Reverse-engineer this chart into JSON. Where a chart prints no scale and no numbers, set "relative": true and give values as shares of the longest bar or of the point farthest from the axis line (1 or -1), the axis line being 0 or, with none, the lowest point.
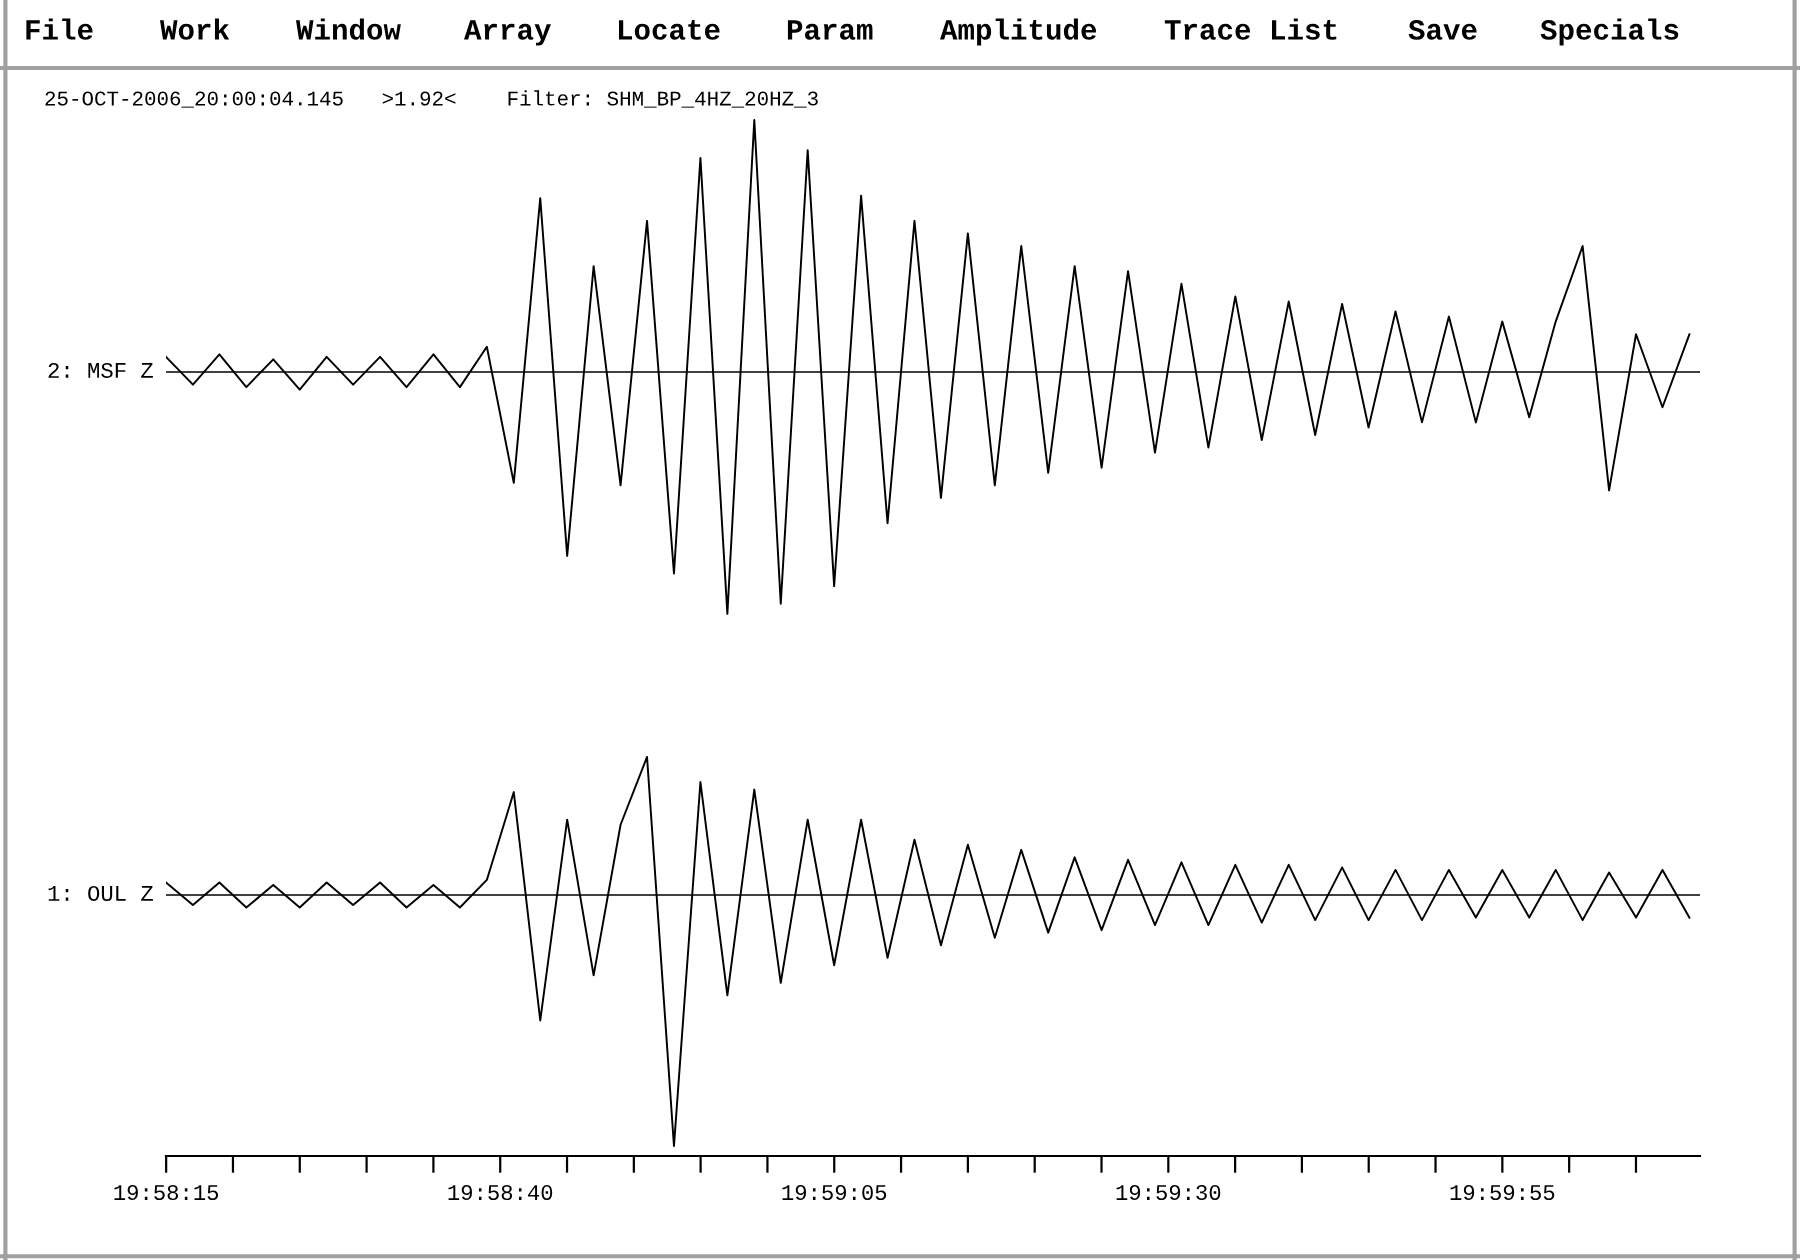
{
  "chart_data": [
    {
      "type": "line",
      "relative": true,
      "ylabel": "2: MSF Z",
      "annotations": [
        "File",
        "Work",
        "Window",
        "Array",
        "Locate",
        "Param",
        "Amplitude",
        "Trace List",
        "Save",
        "Specials",
        "25-OCT-2006_20:00:04.145   >1.92<    Filter: SHM_BP_4HZ_20HZ_3"
      ],
      "x": [
        19.97083,
        19.97139,
        19.97194,
        19.9725,
        19.97306,
        19.97361,
        19.97417,
        19.97472,
        19.97528,
        19.97583,
        19.97639,
        19.97694,
        19.9775,
        19.97806,
        19.97861,
        19.97917,
        19.97972,
        19.98028,
        19.98083,
        19.98139,
        19.98194,
        19.9825,
        19.98306,
        19.98361,
        19.98417,
        19.98472,
        19.98528,
        19.98583,
        19.98639,
        19.98694,
        19.9875,
        19.98806,
        19.98861,
        19.98917,
        19.98972,
        19.99028,
        19.99083,
        19.99139,
        19.99194,
        19.9925,
        19.99306,
        19.99361,
        19.99417,
        19.99472,
        19.99528,
        19.99583,
        19.99639,
        19.99694,
        19.9975,
        19.99806,
        19.99861,
        19.99917,
        19.99972,
        20.00028,
        20.00083,
        20.00139,
        20.00194,
        20.0025
      ],
      "series": [
        {
          "color": "#000000",
          "values": [
            0.06,
            -0.05,
            0.07,
            -0.06,
            0.05,
            -0.07,
            0.06,
            -0.05,
            0.06,
            -0.06,
            0.07,
            -0.06,
            0.1,
            -0.44,
            0.69,
            -0.73,
            0.42,
            -0.45,
            0.6,
            -0.8,
            0.85,
            -0.96,
            1.0,
            -0.92,
            0.88,
            -0.85,
            0.7,
            -0.6,
            0.6,
            -0.5,
            0.55,
            -0.45,
            0.5,
            -0.4,
            0.42,
            -0.38,
            0.4,
            -0.32,
            0.35,
            -0.3,
            0.3,
            -0.27,
            0.28,
            -0.25,
            0.27,
            -0.22,
            0.24,
            -0.2,
            0.22,
            -0.2,
            0.2,
            -0.18,
            0.2,
            0.5,
            -0.47,
            0.15,
            -0.14,
            0.15
          ]
        }
      ],
      "xlim": [
        19.97083,
        20.00272
      ]
    },
    {
      "type": "line",
      "relative": true,
      "ylabel": "1: OUL Z",
      "tick_labels": "x",
      "x": [
        19.97083,
        19.97139,
        19.97194,
        19.9725,
        19.97306,
        19.97361,
        19.97417,
        19.97472,
        19.97528,
        19.97583,
        19.97639,
        19.97694,
        19.9775,
        19.97806,
        19.97861,
        19.97917,
        19.97972,
        19.98028,
        19.98083,
        19.98139,
        19.98194,
        19.9825,
        19.98306,
        19.98361,
        19.98417,
        19.98472,
        19.98528,
        19.98583,
        19.98639,
        19.98694,
        19.9875,
        19.98806,
        19.98861,
        19.98917,
        19.98972,
        19.99028,
        19.99083,
        19.99139,
        19.99194,
        19.9925,
        19.99306,
        19.99361,
        19.99417,
        19.99472,
        19.99528,
        19.99583,
        19.99639,
        19.99694,
        19.9975,
        19.99806,
        19.99861,
        19.99917,
        19.99972,
        20.00028,
        20.00083,
        20.00139,
        20.00194,
        20.0025
      ],
      "series": [
        {
          "color": "#000000",
          "values": [
            0.05,
            -0.04,
            0.05,
            -0.05,
            0.04,
            -0.05,
            0.05,
            -0.04,
            0.05,
            -0.05,
            0.04,
            -0.05,
            0.06,
            0.41,
            -0.5,
            0.3,
            -0.32,
            0.28,
            0.55,
            -1.0,
            0.45,
            -0.4,
            0.42,
            -0.35,
            0.3,
            -0.28,
            0.3,
            -0.25,
            0.22,
            -0.2,
            0.2,
            -0.17,
            0.18,
            -0.15,
            0.15,
            -0.14,
            0.14,
            -0.12,
            0.13,
            -0.12,
            0.12,
            -0.11,
            0.12,
            -0.1,
            0.11,
            -0.1,
            0.1,
            -0.1,
            0.1,
            -0.09,
            0.1,
            -0.09,
            0.1,
            -0.1,
            0.09,
            -0.09,
            0.1,
            -0.09
          ]
        }
      ],
      "xlim": [
        19.97083,
        20.00272
      ],
      "xticks": [
        {
          "value": 19.970833,
          "label": "19:58:15"
        },
        {
          "value": 19.972222,
          "label": null
        },
        {
          "value": 19.973611,
          "label": null
        },
        {
          "value": 19.975,
          "label": null
        },
        {
          "value": 19.976389,
          "label": null
        },
        {
          "value": 19.977778,
          "label": "19:58:40"
        },
        {
          "value": 19.979167,
          "label": null
        },
        {
          "value": 19.980556,
          "label": null
        },
        {
          "value": 19.981944,
          "label": null
        },
        {
          "value": 19.983333,
          "label": null
        },
        {
          "value": 19.984722,
          "label": "19:59:05"
        },
        {
          "value": 19.986111,
          "label": null
        },
        {
          "value": 19.9875,
          "label": null
        },
        {
          "value": 19.988889,
          "label": null
        },
        {
          "value": 19.990278,
          "label": null
        },
        {
          "value": 19.991667,
          "label": "19:59:30"
        },
        {
          "value": 19.993056,
          "label": null
        },
        {
          "value": 19.994444,
          "label": null
        },
        {
          "value": 19.995833,
          "label": null
        },
        {
          "value": 19.997222,
          "label": null
        },
        {
          "value": 19.998611,
          "label": "19:59:55"
        },
        {
          "value": 20.0,
          "label": null
        },
        {
          "value": 20.001389,
          "label": null
        }
      ]
    }
  ]
}
